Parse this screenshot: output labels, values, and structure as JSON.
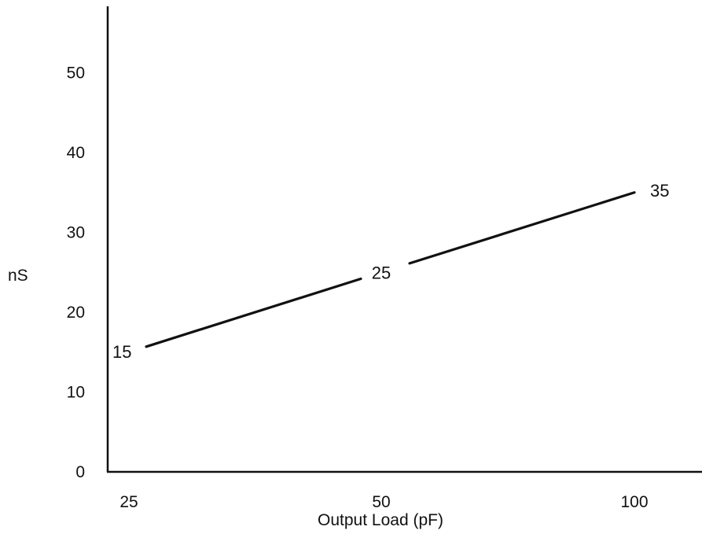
{
  "chart_data": {
    "type": "line",
    "title": "",
    "xlabel": "Output Load (pF)",
    "ylabel": "nS",
    "categories": [
      "25",
      "50",
      "100"
    ],
    "y_ticks": [
      "0",
      "10",
      "20",
      "30",
      "40",
      "50"
    ],
    "ylim": [
      0,
      60
    ],
    "grid": false,
    "legend": "none",
    "series": [
      {
        "values": [
          15,
          25,
          35
        ],
        "data_labels": [
          "15",
          "25",
          "35"
        ]
      }
    ],
    "colors": {
      "line": "#111111",
      "axis": "#111111",
      "background": "#ffffff"
    }
  }
}
